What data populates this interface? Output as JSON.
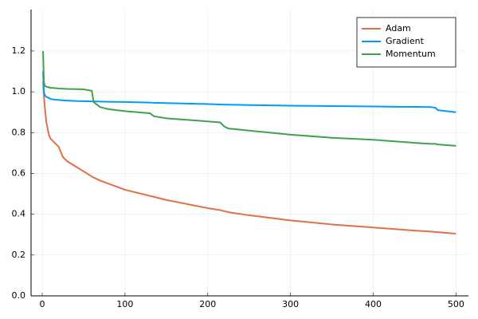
{
  "chart_data": {
    "type": "line",
    "x": [
      1,
      2,
      3,
      5,
      8,
      10,
      15,
      20,
      25,
      30,
      40,
      50,
      60,
      62,
      70,
      80,
      100,
      130,
      135,
      150,
      200,
      215,
      220,
      225,
      250,
      300,
      350,
      400,
      450,
      470,
      475,
      478,
      500
    ],
    "series": [
      {
        "name": "Adam",
        "color": "#e26f46",
        "values": [
          1.05,
          0.98,
          0.93,
          0.85,
          0.79,
          0.77,
          0.75,
          0.73,
          0.68,
          0.66,
          0.635,
          0.61,
          0.585,
          0.58,
          0.565,
          0.55,
          0.52,
          0.49,
          0.485,
          0.47,
          0.43,
          0.42,
          0.415,
          0.41,
          0.395,
          0.37,
          0.35,
          0.335,
          0.32,
          0.315,
          0.313,
          0.312,
          0.305
        ]
      },
      {
        "name": "Gradient",
        "color": "#009af9",
        "values": [
          1.1,
          1.0,
          0.985,
          0.975,
          0.97,
          0.965,
          0.962,
          0.96,
          0.958,
          0.957,
          0.955,
          0.954,
          0.953,
          0.953,
          0.952,
          0.951,
          0.95,
          0.947,
          0.946,
          0.945,
          0.94,
          0.938,
          0.937,
          0.937,
          0.935,
          0.932,
          0.93,
          0.928,
          0.926,
          0.925,
          0.922,
          0.91,
          0.9
        ]
      },
      {
        "name": "Momentum",
        "color": "#3da44d",
        "values": [
          1.2,
          1.05,
          1.03,
          1.025,
          1.022,
          1.02,
          1.018,
          1.016,
          1.015,
          1.014,
          1.013,
          1.012,
          1.005,
          0.95,
          0.925,
          0.915,
          0.905,
          0.895,
          0.88,
          0.87,
          0.855,
          0.85,
          0.83,
          0.82,
          0.81,
          0.79,
          0.775,
          0.765,
          0.75,
          0.745,
          0.745,
          0.742,
          0.735
        ]
      }
    ],
    "xlim": [
      -13.5,
      515
    ],
    "xticks": [
      0,
      100,
      200,
      300,
      400,
      500
    ],
    "ylim": [
      0,
      1.403
    ],
    "yticks": [
      {
        "value": 0,
        "label": "0.0"
      },
      0.2,
      0.4,
      0.6,
      0.8,
      {
        "value": 1,
        "label": "1.0"
      },
      1.2
    ],
    "grid": true,
    "legend": "top-right"
  }
}
